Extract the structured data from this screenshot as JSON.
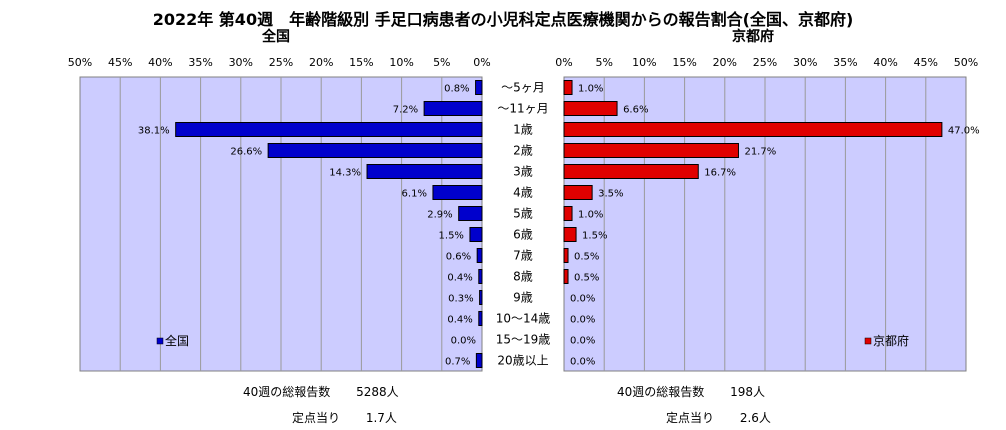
{
  "title": "2022年 第40週　年齢階級別 手足口病患者の小児科定点医療機関からの報告割合(全国、京都府)",
  "chart_data": {
    "type": "bar",
    "categories": [
      "～5ヶ月",
      "～11ヶ月",
      "1歳",
      "2歳",
      "3歳",
      "4歳",
      "5歳",
      "6歳",
      "7歳",
      "8歳",
      "9歳",
      "10～14歳",
      "15～19歳",
      "20歳以上"
    ],
    "xlim": [
      0,
      50
    ],
    "ticks": [
      "0%",
      "5%",
      "10%",
      "15%",
      "20%",
      "25%",
      "30%",
      "35%",
      "40%",
      "45%",
      "50%"
    ],
    "grid": true,
    "panels": [
      {
        "title": "全国",
        "series_name": "全国",
        "direction": "reversed",
        "color": "#0000cc",
        "legend": "bottom-left",
        "values": [
          0.8,
          7.2,
          38.1,
          26.6,
          14.3,
          6.1,
          2.9,
          1.5,
          0.6,
          0.4,
          0.3,
          0.4,
          0.0,
          0.7
        ],
        "labels": [
          "0.8%",
          "7.2%",
          "38.1%",
          "26.6%",
          "14.3%",
          "6.1%",
          "2.9%",
          "1.5%",
          "0.6%",
          "0.4%",
          "0.3%",
          "0.4%",
          "0.0%",
          "0.7%"
        ]
      },
      {
        "title": "京都府",
        "series_name": "京都府",
        "direction": "normal",
        "color": "#e00000",
        "legend": "bottom-right",
        "values": [
          1.0,
          6.6,
          47.0,
          21.7,
          16.7,
          3.5,
          1.0,
          1.5,
          0.5,
          0.5,
          0.0,
          0.0,
          0.0,
          0.0
        ],
        "labels": [
          "1.0%",
          "6.6%",
          "47.0%",
          "21.7%",
          "16.7%",
          "3.5%",
          "1.0%",
          "1.5%",
          "0.5%",
          "0.5%",
          "0.0%",
          "0.0%",
          "0.0%",
          "0.0%"
        ]
      }
    ]
  },
  "footer": {
    "left": {
      "total_label": "40週の総報告数",
      "total_value": "5288人",
      "per_label": "定点当り",
      "per_value": "1.7人"
    },
    "right": {
      "total_label": "40週の総報告数",
      "total_value": "198人",
      "per_label": "定点当り",
      "per_value": "2.6人"
    }
  }
}
